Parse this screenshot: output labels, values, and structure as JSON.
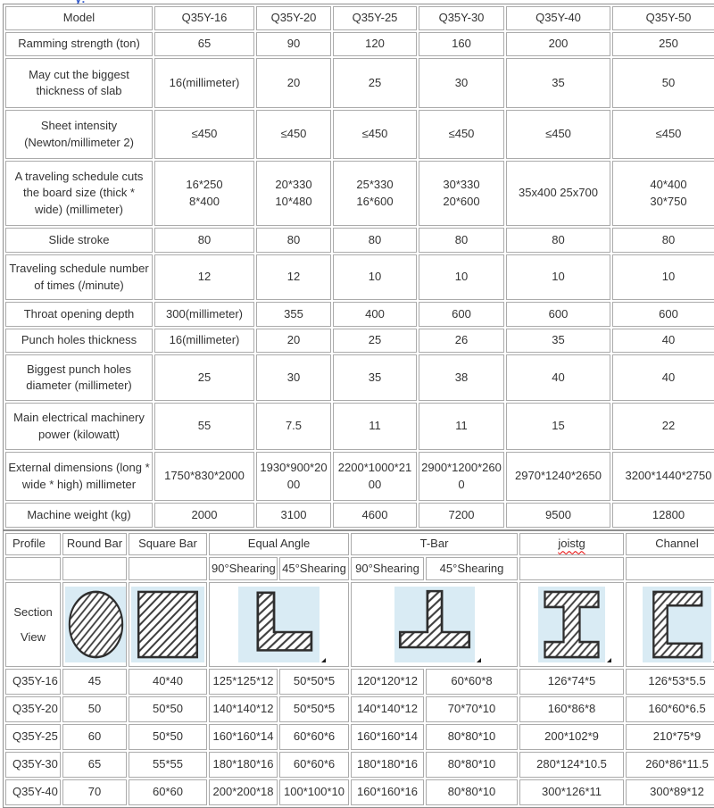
{
  "artifact": {
    "fragment": "y:"
  },
  "colors": {
    "section_bg": "#d9ebf4",
    "hatch": "#3c3c3c",
    "outline": "#2e2e2e",
    "misspell_underline": "#e80000",
    "artifact_blue": "#2a52c8",
    "text": "#333333",
    "border": "#ababab"
  },
  "spec_table": {
    "header": [
      "Model",
      "Q35Y-16",
      "Q35Y-20",
      "Q35Y-25",
      "Q35Y-30",
      "Q35Y-40",
      "Q35Y-50"
    ],
    "rows": [
      {
        "label": "Ramming strength (ton)",
        "values": [
          "65",
          "90",
          "120",
          "160",
          "200",
          "250"
        ]
      },
      {
        "label": "May cut the biggest thickness of slab",
        "values": [
          "16(millimeter)",
          "20",
          "25",
          "30",
          "35",
          "50"
        ]
      },
      {
        "label": "Sheet intensity (Newton/millimeter 2)",
        "values": [
          "≤450",
          "≤450",
          "≤450",
          "≤450",
          "≤450",
          "≤450"
        ]
      },
      {
        "label": "A traveling schedule cuts the board size (thick * wide) (millimeter)",
        "values": [
          "16*250\n8*400",
          "20*330\n10*480",
          "25*330\n16*600",
          "30*330\n20*600",
          "35x400 25x700",
          "40*400\n30*750"
        ]
      },
      {
        "label": "Slide stroke",
        "values": [
          "80",
          "80",
          "80",
          "80",
          "80",
          "80"
        ]
      },
      {
        "label": "Traveling schedule number of times (/minute)",
        "values": [
          "12",
          "12",
          "10",
          "10",
          "10",
          "10"
        ]
      },
      {
        "label": "Throat opening depth",
        "values": [
          "300(millimeter)",
          "355",
          "400",
          "600",
          "600",
          "600"
        ]
      },
      {
        "label": "Punch holes thickness",
        "values": [
          "16(millimeter)",
          "20",
          "25",
          "26",
          "35",
          "40"
        ]
      },
      {
        "label": "Biggest punch holes diameter (millimeter)",
        "values": [
          "25",
          "30",
          "35",
          "38",
          "40",
          "40"
        ]
      },
      {
        "label": "Main electrical machinery power (kilowatt)",
        "values": [
          "55",
          "7.5",
          "11",
          "11",
          "15",
          "22"
        ]
      },
      {
        "label": "External dimensions (long * wide * high) millimeter",
        "values": [
          "1750*830*2000",
          "1930*900*2000",
          "2200*1000*2100",
          "2900*1200*2600",
          "2970*1240*2650",
          "3200*1440*2750"
        ]
      },
      {
        "label": "Machine weight (kg)",
        "values": [
          "2000",
          "3100",
          "4600",
          "7200",
          "9500",
          "12800"
        ]
      }
    ]
  },
  "profile_table": {
    "header": [
      "Profile",
      "Round Bar",
      "Square Bar",
      "Equal Angle",
      "T-Bar",
      "joistg",
      "Channel"
    ],
    "misspelled": "joistg",
    "subheader": [
      "90°Shearing",
      "45°Shearing",
      "90°Shearing",
      "45°Shearing"
    ],
    "section_label": "Section\nView",
    "sections": [
      "round-bar",
      "square-bar",
      "equal-angle",
      "t-bar",
      "joist",
      "channel"
    ],
    "rows": [
      {
        "label": "Q35Y-16",
        "values": [
          "45",
          "40*40",
          "125*125*12",
          "50*50*5",
          "120*120*12",
          "60*60*8",
          "126*74*5",
          "126*53*5.5"
        ]
      },
      {
        "label": "Q35Y-20",
        "values": [
          "50",
          "50*50",
          "140*140*12",
          "50*50*5",
          "140*140*12",
          "70*70*10",
          "160*86*8",
          "160*60*6.5"
        ]
      },
      {
        "label": "Q35Y-25",
        "values": [
          "60",
          "50*50",
          "160*160*14",
          "60*60*6",
          "160*160*14",
          "80*80*10",
          "200*102*9",
          "210*75*9"
        ]
      },
      {
        "label": "Q35Y-30",
        "values": [
          "65",
          "55*55",
          "180*180*16",
          "60*60*6",
          "180*180*16",
          "80*80*10",
          "280*124*10.5",
          "260*86*11.5"
        ]
      },
      {
        "label": "Q35Y-40",
        "values": [
          "70",
          "60*60",
          "200*200*18",
          "100*100*10",
          "160*160*16",
          "80*80*10",
          "300*126*11",
          "300*89*12"
        ]
      }
    ]
  }
}
